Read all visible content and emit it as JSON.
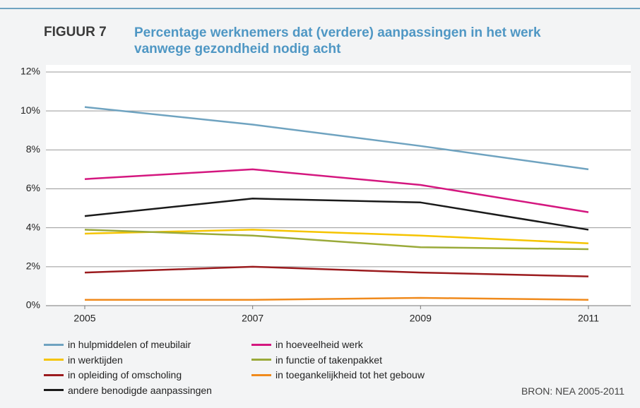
{
  "chart_data": {
    "type": "line",
    "figure_label": "FIGUUR 7",
    "title": "Percentage werknemers dat (verdere) aanpassingen in het werk vanwege gezondheid nodig acht",
    "source": "BRON: NEA 2005-2011",
    "categories": [
      "2005",
      "2007",
      "2009",
      "2011"
    ],
    "ylim": [
      0,
      12
    ],
    "yticks": [
      {
        "value": 0,
        "label": "0%"
      },
      {
        "value": 2,
        "label": "2%"
      },
      {
        "value": 4,
        "label": "4%"
      },
      {
        "value": 6,
        "label": "6%"
      },
      {
        "value": 8,
        "label": "8%"
      },
      {
        "value": 10,
        "label": "10%"
      },
      {
        "value": 12,
        "label": "12%"
      }
    ],
    "grid": true,
    "series": [
      {
        "name": "in hulpmiddelen of meubilair",
        "color": "#6fa3c0",
        "values": [
          10.2,
          9.3,
          8.2,
          7.0
        ]
      },
      {
        "name": "in hoeveelheid werk",
        "color": "#d4177f",
        "values": [
          6.5,
          7.0,
          6.2,
          4.8
        ]
      },
      {
        "name": "in werktijden",
        "color": "#f5c400",
        "values": [
          3.7,
          3.9,
          3.6,
          3.2
        ]
      },
      {
        "name": "in functie of takenpakket",
        "color": "#9aaa3a",
        "values": [
          3.9,
          3.6,
          3.0,
          2.9
        ]
      },
      {
        "name": "in opleiding of omscholing",
        "color": "#9b1b1e",
        "values": [
          1.7,
          2.0,
          1.7,
          1.5
        ]
      },
      {
        "name": "in toegankelijkheid tot het gebouw",
        "color": "#f08a1c",
        "values": [
          0.3,
          0.3,
          0.4,
          0.3
        ]
      },
      {
        "name": "andere benodigde aanpassingen",
        "color": "#1a1a1a",
        "values": [
          4.6,
          5.5,
          5.3,
          3.9
        ]
      }
    ]
  }
}
